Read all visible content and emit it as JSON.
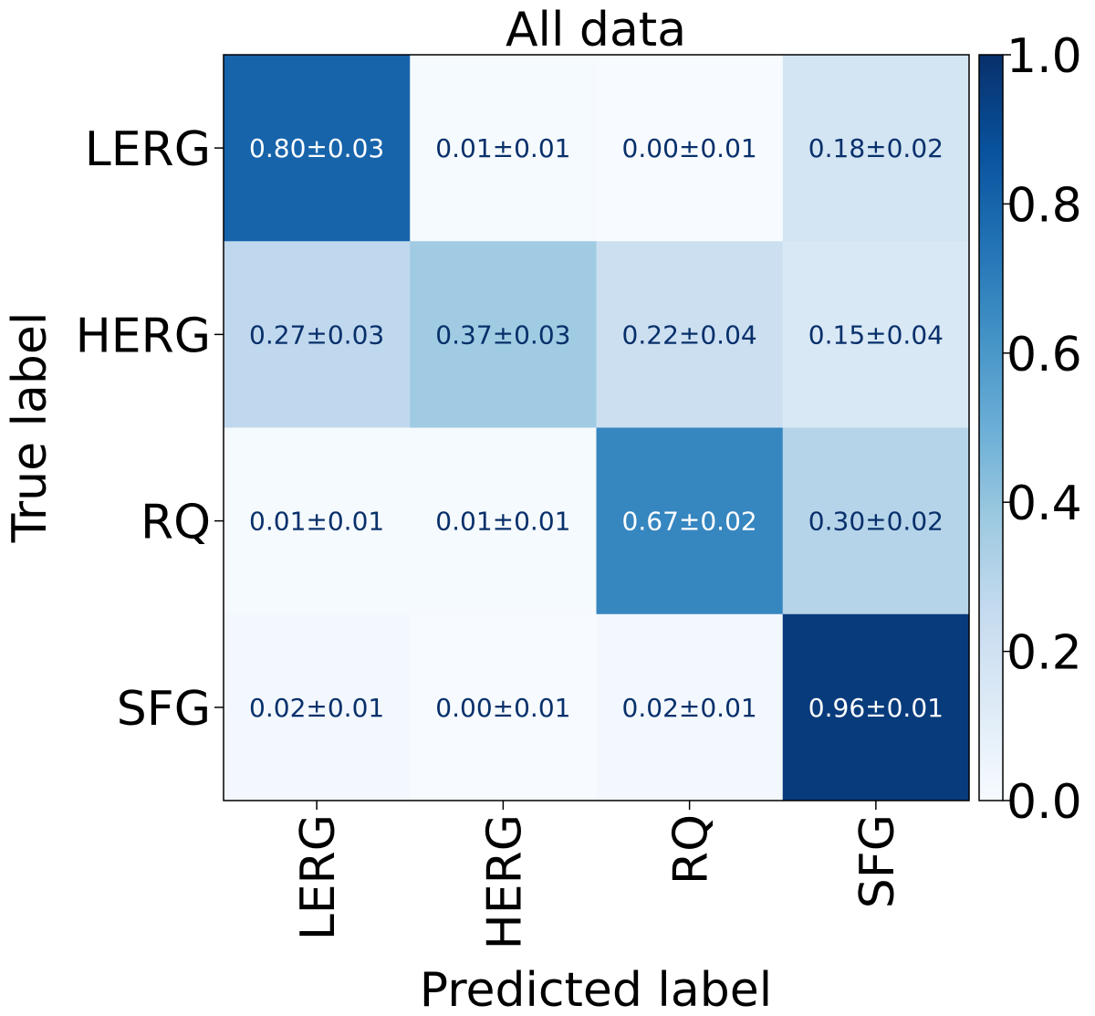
{
  "chart_data": {
    "type": "heatmap",
    "title": "All data",
    "xlabel": "Predicted label",
    "ylabel": "True label",
    "x_categories": [
      "LERG",
      "HERG",
      "RQ",
      "SFG"
    ],
    "y_categories": [
      "LERG",
      "HERG",
      "RQ",
      "SFG"
    ],
    "values": [
      [
        0.8,
        0.01,
        0.0,
        0.18
      ],
      [
        0.27,
        0.37,
        0.22,
        0.15
      ],
      [
        0.01,
        0.01,
        0.67,
        0.3
      ],
      [
        0.02,
        0.0,
        0.02,
        0.96
      ]
    ],
    "cell_labels": [
      [
        "0.80±0.03",
        "0.01±0.01",
        "0.00±0.01",
        "0.18±0.02"
      ],
      [
        "0.27±0.03",
        "0.37±0.03",
        "0.22±0.04",
        "0.15±0.04"
      ],
      [
        "0.01±0.01",
        "0.01±0.01",
        "0.67±0.02",
        "0.30±0.02"
      ],
      [
        "0.02±0.01",
        "0.00±0.01",
        "0.02±0.01",
        "0.96±0.01"
      ]
    ],
    "colorbar": {
      "range": [
        0.0,
        1.0
      ],
      "ticks": [
        "0.0",
        "0.2",
        "0.4",
        "0.6",
        "0.8",
        "1.0"
      ],
      "colormap": "Blues"
    }
  }
}
